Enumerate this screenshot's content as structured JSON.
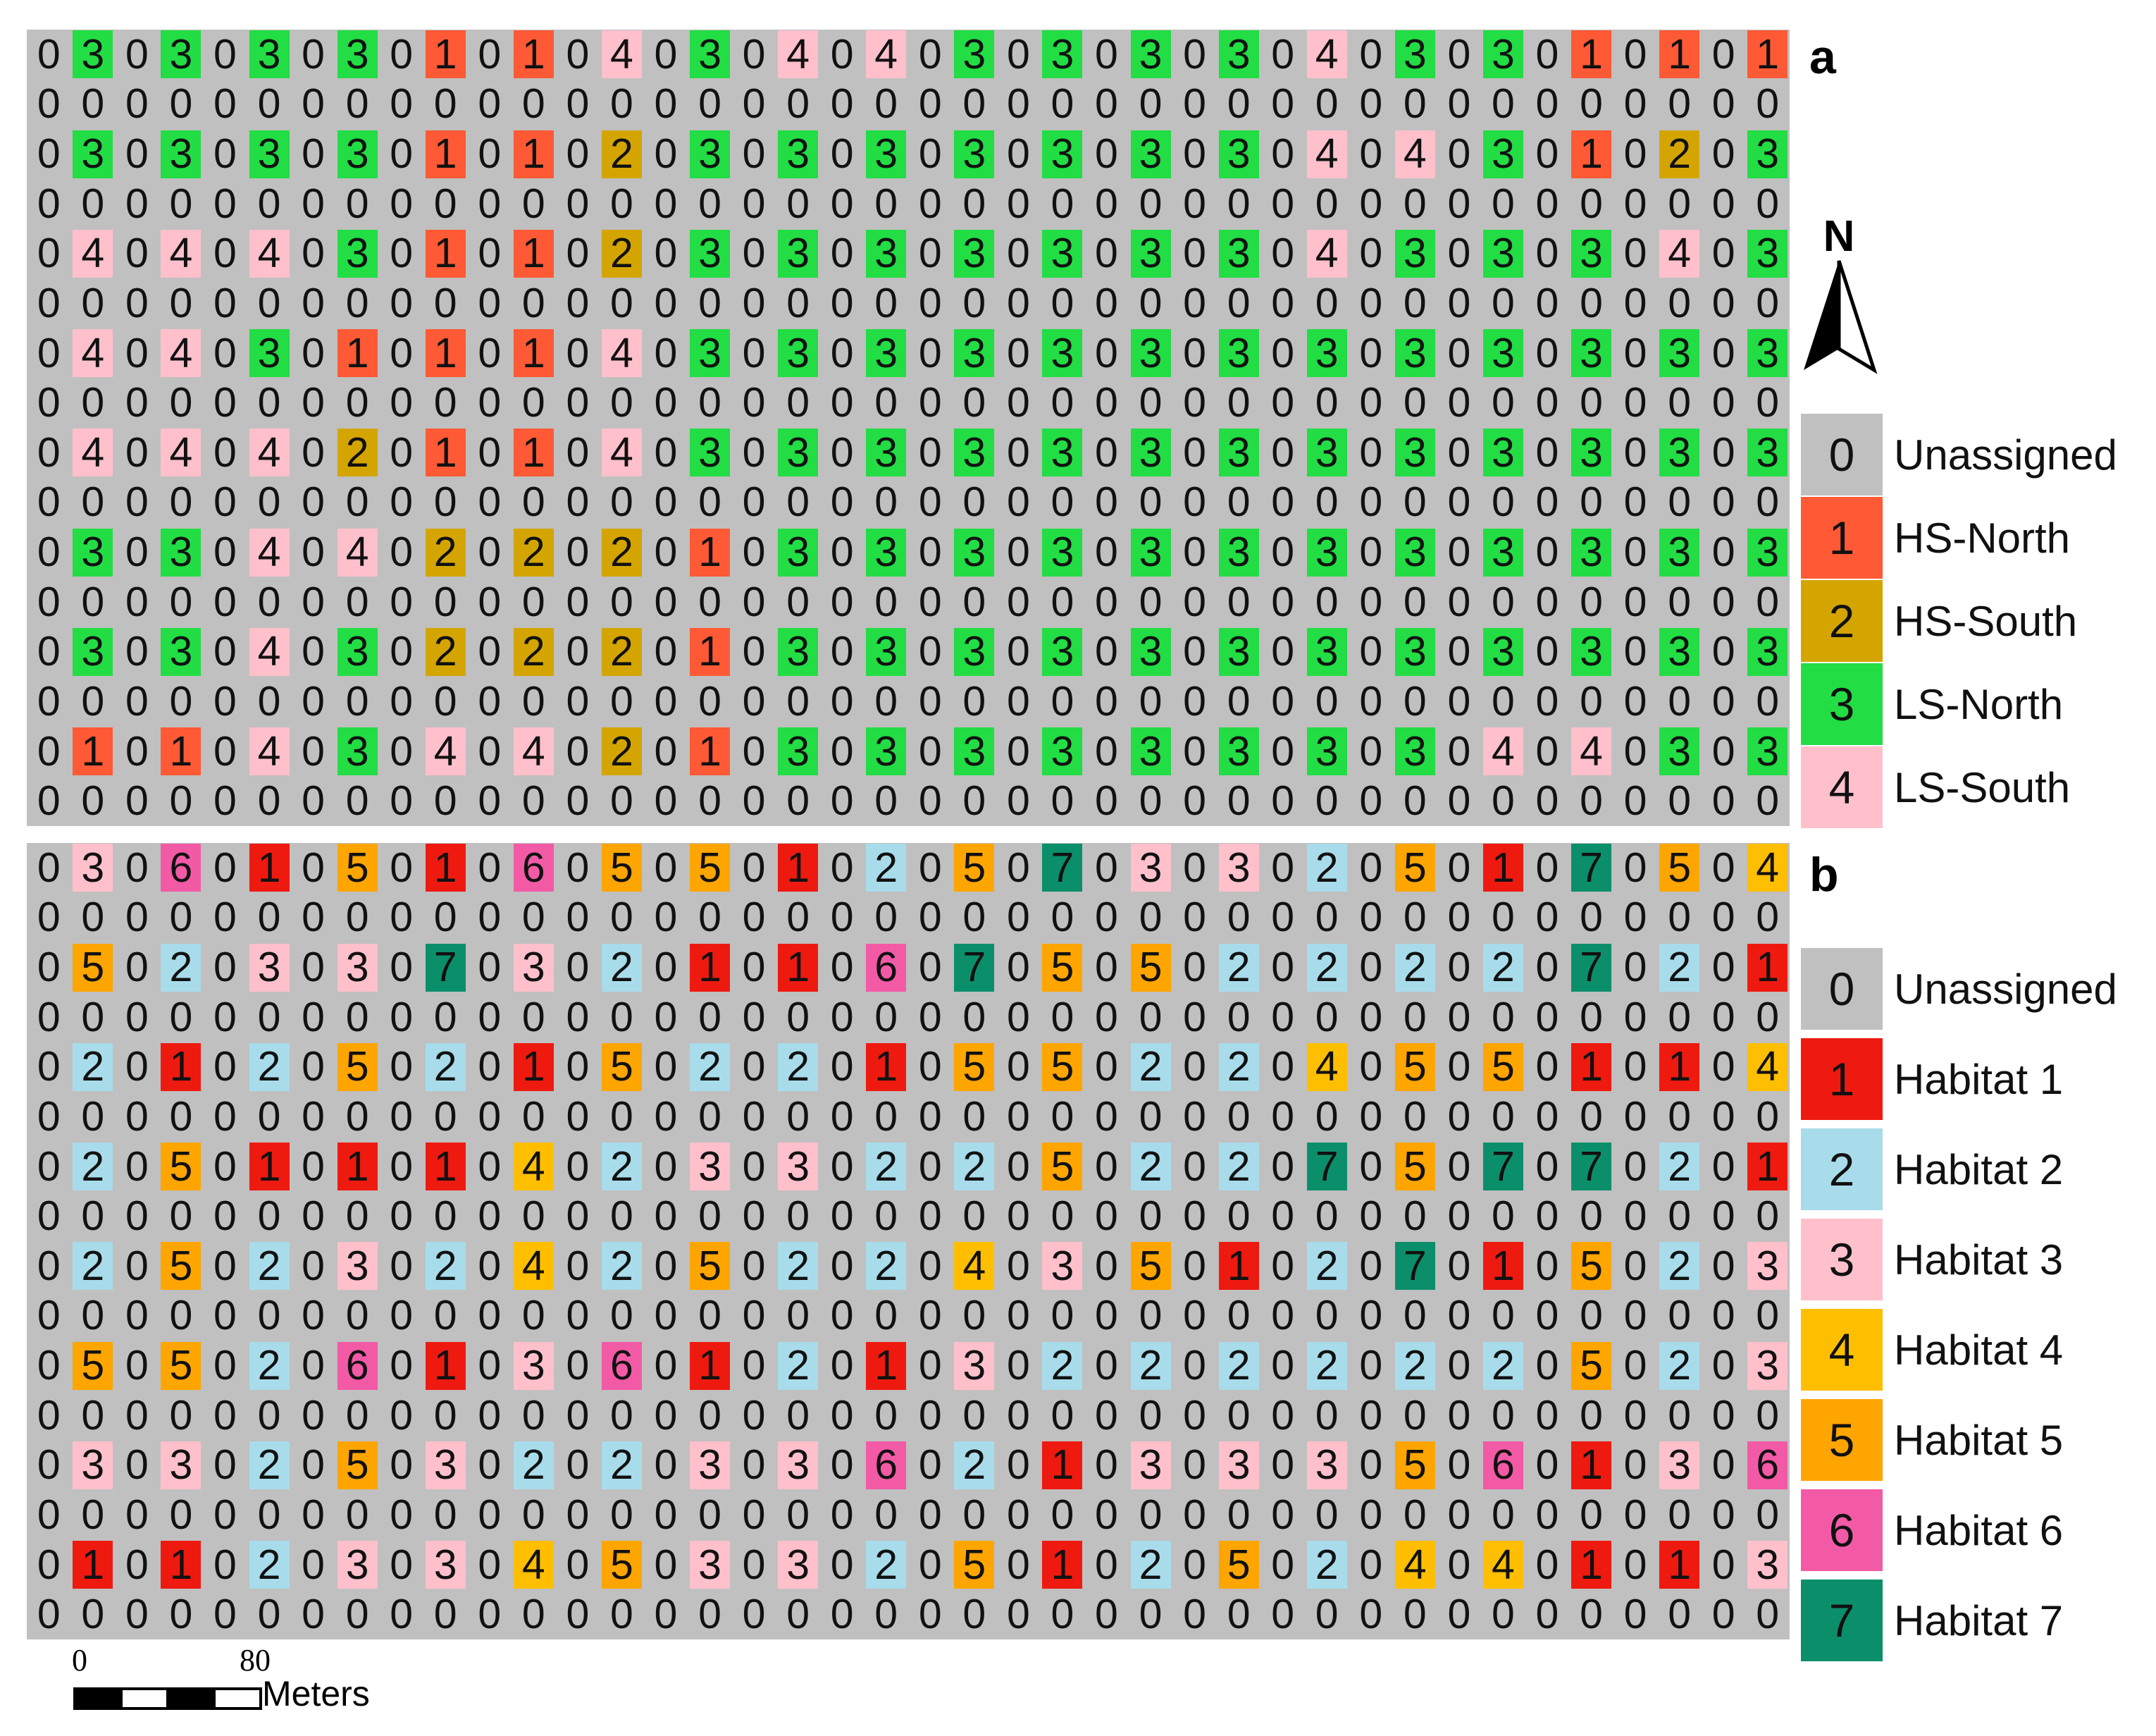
{
  "panels": [
    {
      "letter": "a",
      "rows": [
        "0303030301010403040403030303040303010101",
        "0000000000000000000000000000000000000000",
        "0303030301010203030303030303040403010203",
        "0000000000000000000000000000000000000000",
        "0404040301010203030303030303040303030403",
        "0000000000000000000000000000000000000000",
        "0404030101010403030303030303030303030303",
        "0000000000000000000000000000000000000000",
        "0404040201010403030303030303030303030303",
        "0000000000000000000000000000000000000000",
        "0303040402020201030303030303030303030303",
        "0000000000000000000000000000000000000000",
        "0303040302020201030303030303030303030303",
        "0000000000000000000000000000000000000000",
        "0101040304040201030303030303030304040303",
        "0000000000000000000000000000000000000000"
      ],
      "legend": [
        {
          "value": "0",
          "label": "Unassigned"
        },
        {
          "value": "1",
          "label": "HS-North"
        },
        {
          "value": "2",
          "label": "HS-South"
        },
        {
          "value": "3",
          "label": "LS-North"
        },
        {
          "value": "4",
          "label": "LS-South"
        }
      ],
      "colors": {
        "0": "#c0c0c0",
        "1": "#ff5a35",
        "2": "#d4a500",
        "3": "#22dd44",
        "4": "#ffc0cb"
      }
    },
    {
      "letter": "b",
      "rows": [
        "0306010501060505010205070303020501070504",
        "0000000000000000000000000000000000000000",
        "0502030307030201010607050502020202070201",
        "0000000000000000000000000000000000000000",
        "0201020502010502020105050202040505010104",
        "0000000000000000000000000000000000000000",
        "0205010101040203030202050202070507070201",
        "0000000000000000000000000000000000000000",
        "0205020302040205020204030501020701050203",
        "0000000000000000000000000000000000000000",
        "0505020601030601020103020202020202050203",
        "0000000000000000000000000000000000000000",
        "0303020503020203030602010303030506010306",
        "0000000000000000000000000000000000000000",
        "0101020303040503030205010205020404010103",
        "0000000000000000000000000000000000000000"
      ],
      "legend": [
        {
          "value": "0",
          "label": "Unassigned"
        },
        {
          "value": "1",
          "label": "Habitat 1"
        },
        {
          "value": "2",
          "label": "Habitat 2"
        },
        {
          "value": "3",
          "label": "Habitat 3"
        },
        {
          "value": "4",
          "label": "Habitat 4"
        },
        {
          "value": "5",
          "label": "Habitat 5"
        },
        {
          "value": "6",
          "label": "Habitat 6"
        },
        {
          "value": "7",
          "label": "Habitat 7"
        }
      ],
      "colors": {
        "0": "#c0c0c0",
        "1": "#ee1a10",
        "2": "#a8dcea",
        "3": "#ffc0cb",
        "4": "#ffbf00",
        "5": "#ffa500",
        "6": "#f25aa6",
        "7": "#0b8f6a"
      }
    }
  ],
  "north_arrow": {
    "label": "N"
  },
  "scale_bar": {
    "ticks": [
      "0",
      "80"
    ],
    "unit": "Meters"
  }
}
